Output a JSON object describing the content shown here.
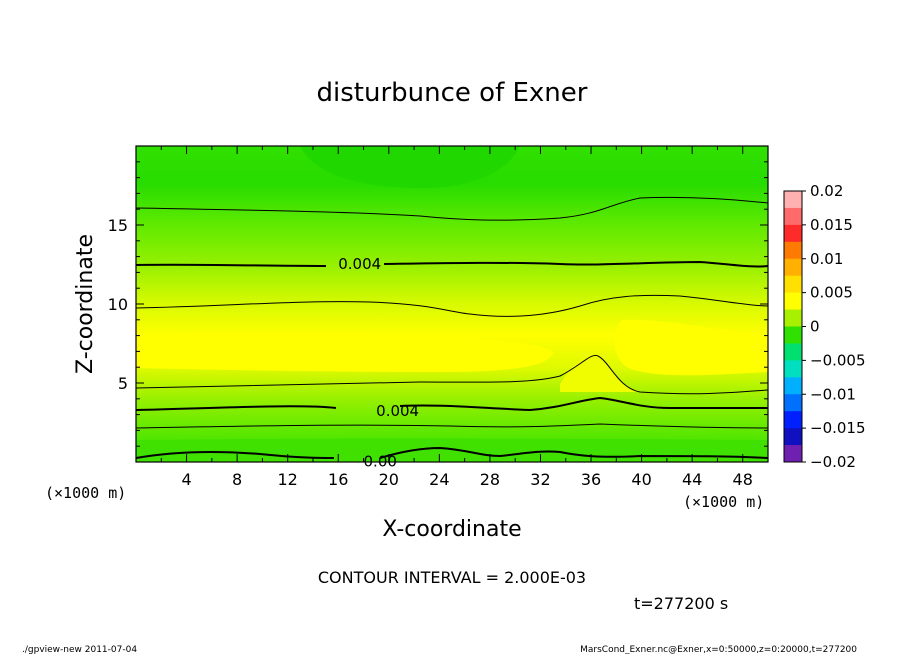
{
  "chart_data": {
    "type": "heatmap",
    "title": "disturbunce of Exner",
    "xlabel": "X-coordinate",
    "ylabel": "Z-coordinate",
    "x_unit": "(×1000 m)",
    "y_unit": "(×1000 m)",
    "xlim": [
      0,
      50
    ],
    "ylim": [
      0,
      20
    ],
    "x_ticks": [
      "4",
      "8",
      "12",
      "16",
      "20",
      "24",
      "28",
      "32",
      "36",
      "40",
      "44",
      "48"
    ],
    "y_ticks": [
      "5",
      "10",
      "15"
    ],
    "colorbar": {
      "range": [
        -0.02,
        0.02
      ],
      "labels": [
        "0.02",
        "0.015",
        "0.01",
        "0.005",
        "0",
        "−0.005",
        "−0.01",
        "−0.015",
        "−0.02"
      ],
      "colors": [
        "#ffb0b0",
        "#ff6a6a",
        "#ff2a2a",
        "#ff7a00",
        "#ffb000",
        "#ffe000",
        "#ffff00",
        "#a8f000",
        "#30e000",
        "#00e070",
        "#00e0c0",
        "#00b0ff",
        "#0070ff",
        "#0020ff",
        "#1010c0",
        "#7020b0"
      ]
    },
    "contour_labels": [
      {
        "text": "0.004",
        "x": 16,
        "z": 12.6
      },
      {
        "text": "0.004",
        "x": 19,
        "z": 3.3
      },
      {
        "text": "0.00",
        "x": 18,
        "z": 0.1
      }
    ],
    "contour_interval": "CONTOUR INTERVAL = 2.000E-03"
  },
  "time_label": "t=277200 s",
  "footer_left": "./gpview-new   2011-07-04",
  "footer_right": "MarsCond_Exner.nc@Exner,x=0:50000,z=0:20000,t=277200"
}
